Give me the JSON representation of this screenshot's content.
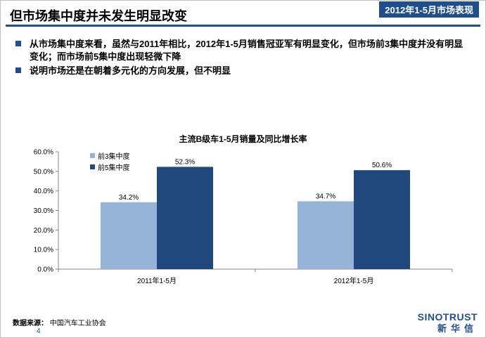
{
  "header": {
    "title": "但市场集中度并未发生明显改变",
    "section_tag": "2012年1-5月市场表现"
  },
  "bullets": [
    "从市场集中度来看，虽然与2011年相比，2012年1-5月销售冠亚军有明显变化，但市场前3集中度并没有明显变化；而市场前5集中度出现轻微下降",
    "说明市场还是在朝着多元化的方向发展，但不明显"
  ],
  "footer": {
    "source_label": "数据来源",
    "source_text": "中国汽车工业协会",
    "page_number": "4",
    "logo_en": "SINOTRUST",
    "logo_cn": "新华信"
  },
  "colors": {
    "accent": "#1f4e8c",
    "series_top3": "#95b3d7",
    "series_top5": "#1f497d"
  },
  "chart_data": {
    "type": "bar",
    "title": "主流B级车1-5月销量及同比增长率",
    "categories": [
      "2011年1-5月",
      "2012年1-5月"
    ],
    "series": [
      {
        "name": "前3集中度",
        "values": [
          34.2,
          34.7
        ],
        "labels": [
          "34.2%",
          "34.7%"
        ]
      },
      {
        "name": "前5集中度",
        "values": [
          52.3,
          50.6
        ],
        "labels": [
          "52.3%",
          "50.6%"
        ]
      }
    ],
    "ylim": [
      0,
      60
    ],
    "yticks": [
      "0.0%",
      "10.0%",
      "20.0%",
      "30.0%",
      "40.0%",
      "50.0%",
      "60.0%"
    ],
    "xlabel": "",
    "ylabel": "",
    "grid": false,
    "legend_position": "top-left"
  }
}
